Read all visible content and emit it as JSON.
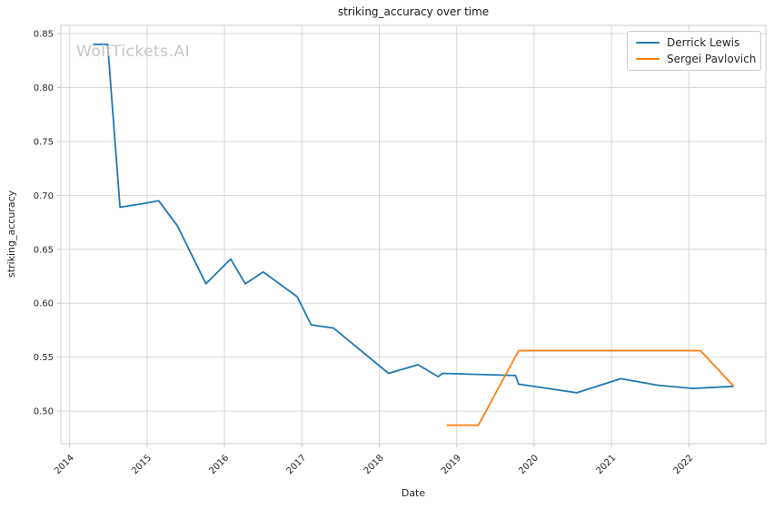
{
  "watermark": "WolfTickets.AI",
  "colors": {
    "background": "#ffffff",
    "grid": "#d9d9d9",
    "spine": "#cccccc",
    "tick_mark": "#c9c9c9",
    "tick_label": "#262626",
    "title_text": "#1a1a1a",
    "axis_label_text": "#262626",
    "watermark_text": "#c6c6c6",
    "legend_border": "#cccccc",
    "series_blue": "#1f77b4",
    "series_orange": "#ff7f0e"
  },
  "chart_data": {
    "type": "line",
    "title": "striking_accuracy over time",
    "xlabel": "Date",
    "ylabel": "striking_accuracy",
    "grid": true,
    "legend_position": "upper right",
    "xlim": [
      2013.886,
      2022.994
    ],
    "ylim": [
      0.4698,
      0.8576
    ],
    "x_ticks": [
      {
        "v": 2014,
        "label": "2014"
      },
      {
        "v": 2015,
        "label": "2015"
      },
      {
        "v": 2016,
        "label": "2016"
      },
      {
        "v": 2017,
        "label": "2017"
      },
      {
        "v": 2018,
        "label": "2018"
      },
      {
        "v": 2019,
        "label": "2019"
      },
      {
        "v": 2020,
        "label": "2020"
      },
      {
        "v": 2021,
        "label": "2021"
      },
      {
        "v": 2022,
        "label": "2022"
      }
    ],
    "y_ticks": [
      {
        "v": 0.5,
        "label": "0.50"
      },
      {
        "v": 0.55,
        "label": "0.55"
      },
      {
        "v": 0.6,
        "label": "0.60"
      },
      {
        "v": 0.65,
        "label": "0.65"
      },
      {
        "v": 0.7,
        "label": "0.70"
      },
      {
        "v": 0.75,
        "label": "0.75"
      },
      {
        "v": 0.8,
        "label": "0.80"
      },
      {
        "v": 0.85,
        "label": "0.85"
      }
    ],
    "series": [
      {
        "name": "Derrick Lewis",
        "color": "#1f77b4",
        "x": [
          2014.3,
          2014.49,
          2014.65,
          2014.92,
          2015.15,
          2015.39,
          2015.76,
          2016.08,
          2016.27,
          2016.5,
          2016.94,
          2017.12,
          2017.41,
          2018.12,
          2018.5,
          2018.76,
          2018.82,
          2019.76,
          2019.8,
          2020.55,
          2021.12,
          2021.6,
          2022.05,
          2022.58
        ],
        "y": [
          0.84,
          0.84,
          0.689,
          0.692,
          0.695,
          0.672,
          0.618,
          0.641,
          0.618,
          0.629,
          0.606,
          0.58,
          0.577,
          0.535,
          0.543,
          0.532,
          0.535,
          0.533,
          0.525,
          0.517,
          0.53,
          0.524,
          0.521,
          0.523
        ]
      },
      {
        "name": "Sergei Pavlovich",
        "color": "#ff7f0e",
        "x": [
          2018.87,
          2019.28,
          2019.8,
          2022.15,
          2022.58
        ],
        "y": [
          0.487,
          0.487,
          0.556,
          0.556,
          0.523
        ]
      }
    ]
  }
}
